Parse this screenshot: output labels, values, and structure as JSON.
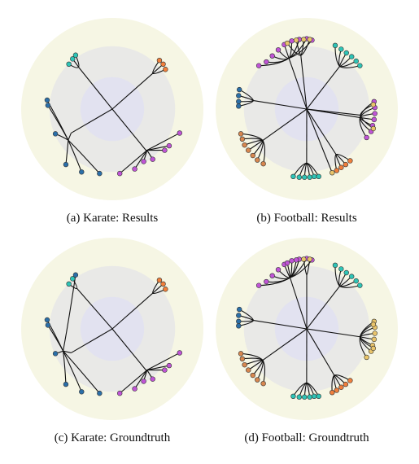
{
  "figure": {
    "colors": {
      "outer_disk": "#f6f6e4",
      "middle_disk": "#e9e9e7",
      "inner_disk": "#e2e2f0",
      "edge": "#111111",
      "node_outline": "#333333"
    },
    "panels": [
      {
        "id": "karate-results",
        "caption": "(a) Karate: Results",
        "graph": "karate",
        "groups": [
          {
            "color": "#2ec4b6",
            "nodes": [
              [
                -0.53,
                0.67
              ],
              [
                -0.58,
                0.6
              ],
              [
                -0.49,
                0.72
              ]
            ]
          },
          {
            "color": "#f07f3c",
            "nodes": [
              [
                0.68,
                0.6
              ],
              [
                0.71,
                0.53
              ],
              [
                0.63,
                0.65
              ]
            ]
          },
          {
            "color": "#2b6fa8",
            "nodes": [
              [
                -0.87,
                0.12
              ],
              [
                -0.86,
                0.05
              ],
              [
                -0.76,
                -0.33
              ],
              [
                -0.62,
                -0.74
              ],
              [
                -0.41,
                -0.84
              ],
              [
                -0.17,
                -0.86
              ]
            ]
          },
          {
            "color": "#c054d6",
            "nodes": [
              [
                0.9,
                -0.32
              ],
              [
                0.76,
                -0.49
              ],
              [
                0.54,
                -0.67
              ],
              [
                0.42,
                -0.7
              ],
              [
                0.3,
                -0.8
              ],
              [
                0.1,
                -0.86
              ],
              [
                0.7,
                -0.55
              ]
            ]
          }
        ]
      },
      {
        "id": "football-results",
        "caption": "(b) Football: Results",
        "graph": "football",
        "groups": [
          {
            "color": "#c054d6",
            "nodes": [
              [
                -0.2,
                0.91
              ],
              [
                -0.1,
                0.93
              ],
              [
                0.0,
                0.94
              ],
              [
                -0.3,
                0.86
              ],
              [
                -0.38,
                0.79
              ],
              [
                -0.46,
                0.71
              ],
              [
                -0.54,
                0.63
              ],
              [
                -0.64,
                0.58
              ],
              [
                0.07,
                0.92
              ]
            ]
          },
          {
            "color": "#e9c46a",
            "nodes": [
              [
                -0.26,
                0.88
              ],
              [
                -0.14,
                0.92
              ],
              [
                -0.04,
                0.93
              ],
              [
                0.04,
                0.93
              ]
            ]
          },
          {
            "color": "#2ec4b6",
            "nodes": [
              [
                0.38,
                0.85
              ],
              [
                0.46,
                0.8
              ],
              [
                0.53,
                0.75
              ],
              [
                0.6,
                0.7
              ],
              [
                0.66,
                0.64
              ],
              [
                0.71,
                0.58
              ]
            ]
          },
          {
            "color": "#2b6fa8",
            "nodes": [
              [
                -0.9,
                0.26
              ],
              [
                -0.91,
                0.18
              ],
              [
                -0.91,
                0.1
              ],
              [
                -0.91,
                0.04
              ]
            ]
          },
          {
            "color": "#c054d6",
            "nodes": [
              [
                0.9,
                0.1
              ],
              [
                0.91,
                0.02
              ],
              [
                0.91,
                -0.06
              ],
              [
                0.9,
                -0.14
              ],
              [
                0.88,
                -0.22
              ],
              [
                0.86,
                -0.3
              ],
              [
                0.8,
                -0.38
              ]
            ]
          },
          {
            "color": "#e9c46a",
            "nodes": [
              [
                0.89,
                0.06
              ],
              [
                0.89,
                -0.26
              ]
            ]
          },
          {
            "color": "#d7874f",
            "nodes": [
              [
                -0.88,
                -0.33
              ],
              [
                -0.86,
                -0.4
              ],
              [
                -0.83,
                -0.48
              ],
              [
                -0.78,
                -0.55
              ],
              [
                -0.72,
                -0.62
              ],
              [
                -0.66,
                -0.68
              ],
              [
                -0.58,
                -0.73
              ]
            ]
          },
          {
            "color": "#2ec4b6",
            "nodes": [
              [
                -0.18,
                -0.9
              ],
              [
                -0.1,
                -0.91
              ],
              [
                -0.03,
                -0.91
              ],
              [
                0.04,
                -0.91
              ],
              [
                0.1,
                -0.9
              ],
              [
                0.16,
                -0.9
              ]
            ]
          },
          {
            "color": "#f07f3c",
            "nodes": [
              [
                0.4,
                -0.82
              ],
              [
                0.46,
                -0.78
              ],
              [
                0.52,
                -0.74
              ],
              [
                0.58,
                -0.69
              ]
            ]
          },
          {
            "color": "#e9c46a",
            "nodes": [
              [
                0.34,
                -0.85
              ]
            ]
          }
        ]
      },
      {
        "id": "karate-groundtruth",
        "caption": "(c) Karate: Groundtruth",
        "graph": "karate",
        "groups": [
          {
            "color": "#2ec4b6",
            "nodes": [
              [
                -0.53,
                0.67
              ],
              [
                -0.58,
                0.6
              ]
            ]
          },
          {
            "color": "#f07f3c",
            "nodes": [
              [
                0.68,
                0.6
              ],
              [
                0.71,
                0.53
              ],
              [
                0.63,
                0.65
              ]
            ]
          },
          {
            "color": "#2b6fa8",
            "nodes": [
              [
                -0.87,
                0.12
              ],
              [
                -0.86,
                0.05
              ],
              [
                -0.76,
                -0.33
              ],
              [
                -0.62,
                -0.74
              ],
              [
                -0.41,
                -0.84
              ],
              [
                -0.17,
                -0.86
              ],
              [
                -0.49,
                0.72
              ]
            ]
          },
          {
            "color": "#c054d6",
            "nodes": [
              [
                0.9,
                -0.32
              ],
              [
                0.76,
                -0.49
              ],
              [
                0.54,
                -0.67
              ],
              [
                0.42,
                -0.7
              ],
              [
                0.3,
                -0.8
              ],
              [
                0.1,
                -0.86
              ],
              [
                0.7,
                -0.55
              ]
            ]
          }
        ]
      },
      {
        "id": "football-groundtruth",
        "caption": "(d) Football: Groundtruth",
        "graph": "football",
        "groups": [
          {
            "color": "#c054d6",
            "nodes": [
              [
                -0.2,
                0.91
              ],
              [
                -0.1,
                0.93
              ],
              [
                0.0,
                0.94
              ],
              [
                -0.3,
                0.86
              ],
              [
                -0.38,
                0.79
              ],
              [
                -0.46,
                0.71
              ],
              [
                -0.54,
                0.63
              ],
              [
                -0.64,
                0.58
              ],
              [
                0.07,
                0.92
              ],
              [
                -0.26,
                0.88
              ],
              [
                -0.14,
                0.92
              ]
            ]
          },
          {
            "color": "#e9c46a",
            "nodes": [
              [
                -0.04,
                0.93
              ],
              [
                0.04,
                0.93
              ]
            ]
          },
          {
            "color": "#2ec4b6",
            "nodes": [
              [
                0.38,
                0.85
              ],
              [
                0.46,
                0.8
              ],
              [
                0.53,
                0.75
              ],
              [
                0.6,
                0.7
              ],
              [
                0.66,
                0.64
              ],
              [
                0.71,
                0.58
              ]
            ]
          },
          {
            "color": "#2b6fa8",
            "nodes": [
              [
                -0.9,
                0.26
              ],
              [
                -0.91,
                0.18
              ],
              [
                -0.91,
                0.1
              ],
              [
                -0.91,
                0.04
              ]
            ]
          },
          {
            "color": "#e9c46a",
            "nodes": [
              [
                0.9,
                0.1
              ],
              [
                0.91,
                0.02
              ],
              [
                0.91,
                -0.06
              ],
              [
                0.9,
                -0.14
              ],
              [
                0.88,
                -0.22
              ],
              [
                0.86,
                -0.3
              ],
              [
                0.8,
                -0.38
              ],
              [
                0.89,
                0.06
              ],
              [
                0.89,
                -0.26
              ]
            ]
          },
          {
            "color": "#d7874f",
            "nodes": [
              [
                -0.88,
                -0.33
              ],
              [
                -0.86,
                -0.4
              ],
              [
                -0.83,
                -0.48
              ],
              [
                -0.78,
                -0.55
              ],
              [
                -0.72,
                -0.62
              ],
              [
                -0.66,
                -0.68
              ],
              [
                -0.58,
                -0.73
              ]
            ]
          },
          {
            "color": "#2ec4b6",
            "nodes": [
              [
                -0.18,
                -0.9
              ],
              [
                -0.1,
                -0.91
              ],
              [
                -0.03,
                -0.91
              ],
              [
                0.04,
                -0.91
              ],
              [
                0.1,
                -0.9
              ],
              [
                0.16,
                -0.9
              ]
            ]
          },
          {
            "color": "#f07f3c",
            "nodes": [
              [
                0.4,
                -0.82
              ],
              [
                0.46,
                -0.78
              ],
              [
                0.52,
                -0.74
              ],
              [
                0.58,
                -0.69
              ],
              [
                0.34,
                -0.85
              ]
            ]
          }
        ]
      }
    ]
  }
}
